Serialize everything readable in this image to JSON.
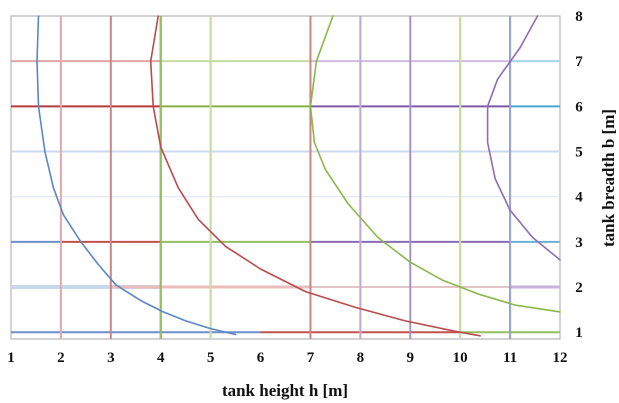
{
  "chart_data": {
    "type": "line",
    "title": "",
    "xlabel": "tank height h [m]",
    "ylabel": "tank breadth b [m]",
    "xlim": [
      1,
      12
    ],
    "ylim": [
      0.85,
      8
    ],
    "x_ticks": [
      1,
      2,
      3,
      4,
      5,
      6,
      7,
      8,
      9,
      10,
      11,
      12
    ],
    "y_ticks": [
      1,
      2,
      3,
      4,
      5,
      6,
      7,
      8
    ],
    "legend": "none",
    "grid": true,
    "y_axis_side": "right",
    "series": [
      {
        "color": "#5b86c5",
        "points": [
          [
            1.55,
            8
          ],
          [
            1.52,
            7
          ],
          [
            1.55,
            6
          ],
          [
            1.68,
            5
          ],
          [
            1.85,
            4.2
          ],
          [
            2.05,
            3.6
          ],
          [
            2.4,
            3.0
          ],
          [
            2.75,
            2.5
          ],
          [
            3.1,
            2.05
          ],
          [
            3.6,
            1.7
          ],
          [
            4.05,
            1.45
          ],
          [
            4.5,
            1.25
          ],
          [
            5.0,
            1.08
          ],
          [
            5.5,
            0.95
          ]
        ]
      },
      {
        "color": "#bb4b4b",
        "points": [
          [
            3.95,
            8
          ],
          [
            3.8,
            7
          ],
          [
            3.85,
            6
          ],
          [
            4.0,
            5.1
          ],
          [
            4.35,
            4.2
          ],
          [
            4.75,
            3.5
          ],
          [
            5.3,
            2.9
          ],
          [
            6.0,
            2.4
          ],
          [
            6.9,
            1.9
          ],
          [
            7.9,
            1.55
          ],
          [
            8.9,
            1.25
          ],
          [
            9.9,
            1.02
          ],
          [
            10.4,
            0.92
          ]
        ]
      },
      {
        "color": "#8ab84a",
        "points": [
          [
            7.45,
            8
          ],
          [
            7.12,
            7
          ],
          [
            7.0,
            6
          ],
          [
            7.08,
            5.2
          ],
          [
            7.3,
            4.6
          ],
          [
            7.75,
            3.85
          ],
          [
            8.35,
            3.1
          ],
          [
            9.0,
            2.55
          ],
          [
            9.65,
            2.15
          ],
          [
            10.35,
            1.85
          ],
          [
            11.1,
            1.6
          ],
          [
            12.0,
            1.45
          ]
        ]
      },
      {
        "color": "#8e6cb5",
        "points": [
          [
            11.55,
            8
          ],
          [
            11.2,
            7.3
          ],
          [
            10.75,
            6.6
          ],
          [
            10.55,
            6.0
          ],
          [
            10.55,
            5.2
          ],
          [
            10.7,
            4.4
          ],
          [
            11.0,
            3.7
          ],
          [
            11.45,
            3.1
          ],
          [
            12.0,
            2.6
          ]
        ]
      }
    ],
    "vertical_gridlines": [
      {
        "x": 2,
        "color": "#b9cce8",
        "width": 1
      },
      {
        "x": 3,
        "color": "#b9cce8",
        "width": 1
      },
      {
        "x": 2,
        "color": "#e5a8a8",
        "width": 2
      },
      {
        "x": 3,
        "color": "#cc8585",
        "width": 2
      },
      {
        "x": 4,
        "color": "#c05a5a",
        "width": 2
      },
      {
        "x": 5,
        "color": "#e5a8a8",
        "width": 2
      },
      {
        "x": 4,
        "color": "#95c062",
        "width": 2
      },
      {
        "x": 5,
        "color": "#c6dea4",
        "width": 2
      },
      {
        "x": 7,
        "color": "#86b044",
        "width": 2
      },
      {
        "x": 8,
        "color": "#d9e9c5",
        "width": 2
      },
      {
        "x": 7,
        "color": "#cc8585",
        "width": 1
      },
      {
        "x": 8,
        "color": "#bda8d8",
        "width": 2
      },
      {
        "x": 9,
        "color": "#a890c8",
        "width": 2
      },
      {
        "x": 10,
        "color": "#c6b2de",
        "width": 2
      },
      {
        "x": 10,
        "color": "#c6dea4",
        "width": 2
      },
      {
        "x": 11,
        "color": "#8a6cb5",
        "width": 2
      },
      {
        "x": 11,
        "color": "#a6cfe1",
        "width": 1
      }
    ],
    "horizontal_gridlines": [
      {
        "y": 2,
        "color": "#c7d7ee",
        "width": 4,
        "from": 1,
        "to": 4
      },
      {
        "y": 2,
        "color": "#ecbcbc",
        "width": 3,
        "from": 3,
        "to": 7
      },
      {
        "y": 2,
        "color": "#e3c5c5",
        "width": 2,
        "from": 7,
        "to": 11
      },
      {
        "y": 2,
        "color": "#c6b2de",
        "width": 3,
        "from": 11,
        "to": 12
      },
      {
        "y": 3,
        "color": "#6b8fcd",
        "width": 2,
        "from": 1,
        "to": 2
      },
      {
        "y": 3,
        "color": "#c55050",
        "width": 2,
        "from": 2,
        "to": 4
      },
      {
        "y": 3,
        "color": "#94bf5f",
        "width": 2,
        "from": 4,
        "to": 7
      },
      {
        "y": 3,
        "color": "#8a6cb5",
        "width": 2,
        "from": 7,
        "to": 11
      },
      {
        "y": 3,
        "color": "#6ab2d6",
        "width": 2,
        "from": 11,
        "to": 12
      },
      {
        "y": 4,
        "color": "#d9e3f1",
        "width": 1,
        "from": 1,
        "to": 12
      },
      {
        "y": 5,
        "color": "#ccd9ee",
        "width": 2,
        "from": 1,
        "to": 12
      },
      {
        "y": 6,
        "color": "#b83a3a",
        "width": 2,
        "from": 1,
        "to": 4
      },
      {
        "y": 6,
        "color": "#86b044",
        "width": 2,
        "from": 4,
        "to": 7
      },
      {
        "y": 6,
        "color": "#7e59a8",
        "width": 2,
        "from": 7,
        "to": 11
      },
      {
        "y": 6,
        "color": "#4aa7cf",
        "width": 2,
        "from": 11,
        "to": 12
      },
      {
        "y": 7,
        "color": "#e3a4a4",
        "width": 2,
        "from": 1,
        "to": 4
      },
      {
        "y": 7,
        "color": "#c6dea4",
        "width": 2,
        "from": 4,
        "to": 7
      },
      {
        "y": 7,
        "color": "#cdbde3",
        "width": 2,
        "from": 7,
        "to": 11
      },
      {
        "y": 7,
        "color": "#a6d4ea",
        "width": 2,
        "from": 11,
        "to": 12
      },
      {
        "y": 1,
        "color": "#6b8fcd",
        "width": 2,
        "from": 1,
        "to": 6
      },
      {
        "y": 1,
        "color": "#c55050",
        "width": 2,
        "from": 6,
        "to": 10
      },
      {
        "y": 1,
        "color": "#94bf5f",
        "width": 2,
        "from": 10,
        "to": 12
      }
    ]
  }
}
